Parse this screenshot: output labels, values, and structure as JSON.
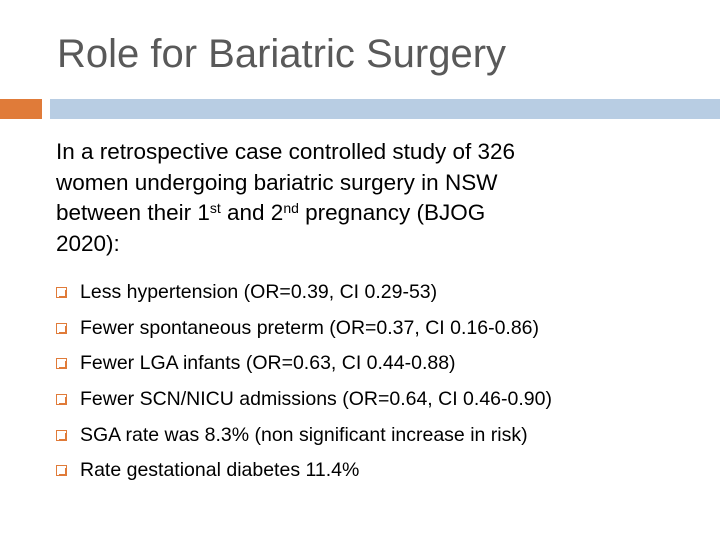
{
  "slide": {
    "title": "Role for Bariatric Surgery",
    "intro": {
      "line1": "In a retrospective case controlled study of 326",
      "line2": "women undergoing bariatric surgery in NSW",
      "line3_a": "between their 1",
      "line3_sup1": "st",
      "line3_b": " and 2",
      "line3_sup2": "nd",
      "line3_c": " pregnancy (BJOG",
      "line4": "2020):"
    },
    "bullets": [
      "Less hypertension (OR=0.39, CI 0.29-53)",
      "Fewer spontaneous preterm (OR=0.37, CI 0.16-0.86)",
      "Fewer LGA infants (OR=0.63, CI 0.44-0.88)",
      "Fewer SCN/NICU admissions (OR=0.64, CI 0.46-0.90)",
      "SGA rate was 8.3% (non significant increase in risk)",
      "Rate gestational diabetes 11.4%"
    ],
    "bullet_icon": "box-bullet-icon",
    "colors": {
      "title": "#595959",
      "accent": "#e07b39",
      "rule": "#b8cde3",
      "text": "#000000"
    }
  }
}
